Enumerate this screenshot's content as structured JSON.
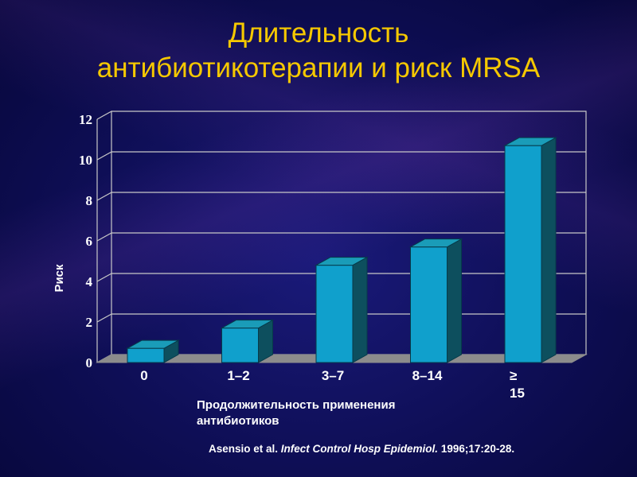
{
  "slide": {
    "title": "Длительность\nантибиотикотерапии и риск MRSA",
    "citation": {
      "authors": "Asensio et al. ",
      "journal": "Infect Control Hosp Epidemiol.",
      "details": " 1996;17:20-28."
    }
  },
  "colors": {
    "title": "#f5c800",
    "bar_front": "#10a0cc",
    "bar_top": "#1a9cb8",
    "bar_side": "#0d4f5e",
    "floor": "#8c8c8c",
    "grid": "#c8c8c8",
    "text": "#ffffff"
  },
  "chart_data": {
    "type": "bar",
    "categories": [
      "0",
      "1–2",
      "3–7",
      "8–14",
      "≥\n15"
    ],
    "values": [
      0.7,
      1.7,
      4.8,
      5.7,
      10.7
    ],
    "xlabel": "Продолжительность применения\nантибиотиков",
    "ylabel": "Риск",
    "ylim": [
      0,
      12
    ],
    "yticks": [
      "0",
      "2",
      "4",
      "6",
      "8",
      "10",
      "12"
    ],
    "grid": true,
    "legend": "none",
    "style": "3d"
  }
}
